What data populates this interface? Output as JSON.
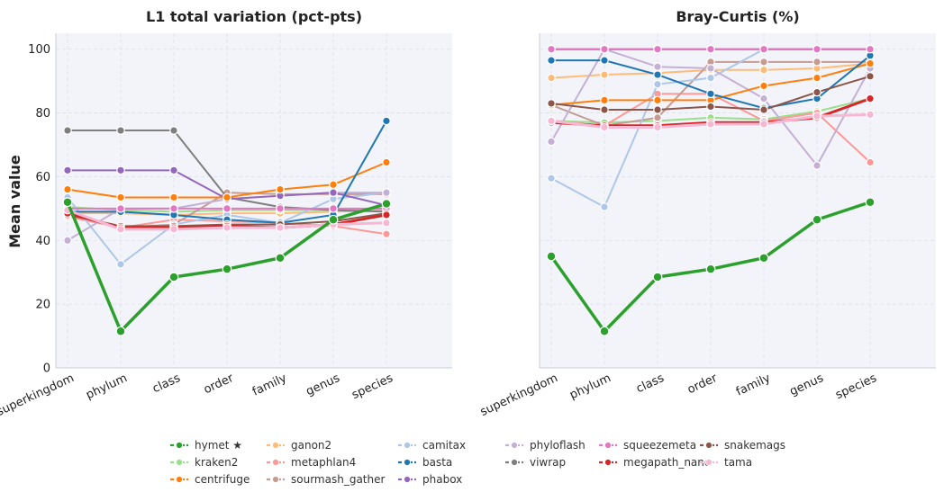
{
  "figure": {
    "ylabel": "Mean value"
  },
  "chart_data": [
    {
      "type": "line",
      "title": "L1 total variation (pct-pts)",
      "categories": [
        "superkingdom",
        "phylum",
        "class",
        "order",
        "family",
        "genus",
        "species"
      ],
      "ylim": [
        0,
        105
      ],
      "yticks": [
        0,
        20,
        40,
        60,
        80,
        100
      ],
      "grid": true,
      "series": [
        {
          "name": "ganon2",
          "values": [
            48.5,
            48.5,
            48.0,
            48.5,
            48.5,
            49.0,
            49.5
          ]
        },
        {
          "name": "kraken2",
          "values": [
            50.5,
            49.5,
            49.0,
            49.5,
            49.5,
            49.5,
            50.0
          ]
        },
        {
          "name": "metaphlan4",
          "values": [
            47.5,
            44.0,
            46.5,
            46.0,
            45.5,
            44.5,
            42.0
          ]
        },
        {
          "name": "sourmash_gather",
          "values": [
            49.0,
            44.0,
            45.0,
            55.0,
            54.5,
            54.5,
            54.5
          ]
        },
        {
          "name": "camitax",
          "values": [
            53.5,
            32.5,
            45.0,
            48.0,
            45.5,
            53.0,
            55.0
          ]
        },
        {
          "name": "phyloflash",
          "values": [
            40.0,
            50.0,
            50.0,
            53.0,
            54.0,
            55.0,
            55.0
          ]
        },
        {
          "name": "viwrap",
          "values": [
            74.5,
            74.5,
            74.5,
            53.5,
            50.5,
            49.5,
            49.0
          ]
        },
        {
          "name": "phabox",
          "values": [
            62.0,
            62.0,
            62.0,
            53.0,
            54.0,
            55.0,
            51.0
          ]
        },
        {
          "name": "centrifuge",
          "values": [
            56.0,
            53.5,
            53.5,
            53.5,
            56.0,
            57.5,
            64.5
          ]
        },
        {
          "name": "basta",
          "values": [
            49.0,
            49.0,
            48.0,
            46.5,
            45.5,
            48.0,
            77.5
          ]
        },
        {
          "name": "squeezemeta",
          "values": [
            50.0,
            50.0,
            50.0,
            50.0,
            50.0,
            50.0,
            50.0
          ]
        },
        {
          "name": "snakemags",
          "values": [
            48.0,
            44.5,
            44.5,
            45.0,
            45.0,
            46.0,
            48.5
          ]
        },
        {
          "name": "megapath_nano",
          "values": [
            48.5,
            44.0,
            44.0,
            44.5,
            44.0,
            45.0,
            48.0
          ]
        },
        {
          "name": "tama",
          "values": [
            49.5,
            43.5,
            43.5,
            44.0,
            44.0,
            45.0,
            45.5
          ]
        },
        {
          "name": "hymet ★",
          "values": [
            52.0,
            11.5,
            28.5,
            31.0,
            34.5,
            46.5,
            51.5
          ]
        }
      ]
    },
    {
      "type": "line",
      "title": "Bray-Curtis (%)",
      "categories": [
        "superkingdom",
        "phylum",
        "class",
        "order",
        "family",
        "genus",
        "species"
      ],
      "ylim": [
        0,
        105
      ],
      "yticks": [
        0,
        20,
        40,
        60,
        80,
        100
      ],
      "grid": true,
      "series": [
        {
          "name": "ganon2",
          "values": [
            91.0,
            92.0,
            92.5,
            93.5,
            93.5,
            94.0,
            95.5
          ]
        },
        {
          "name": "kraken2",
          "values": [
            77.5,
            77.0,
            77.5,
            78.5,
            78.0,
            80.5,
            84.5
          ]
        },
        {
          "name": "metaphlan4",
          "values": [
            77.5,
            76.0,
            86.0,
            86.0,
            77.5,
            80.0,
            64.5
          ]
        },
        {
          "name": "sourmash_gather",
          "values": [
            82.5,
            76.0,
            78.5,
            96.0,
            96.0,
            96.0,
            96.0
          ]
        },
        {
          "name": "camitax",
          "values": [
            59.5,
            50.5,
            89.0,
            91.0,
            100.0,
            100.0,
            100.0
          ]
        },
        {
          "name": "phyloflash",
          "values": [
            71.0,
            100.0,
            94.5,
            94.0,
            84.5,
            63.5,
            94.0
          ]
        },
        {
          "name": "viwrap",
          "values": [
            100.0,
            100.0,
            100.0,
            100.0,
            100.0,
            100.0,
            100.0
          ]
        },
        {
          "name": "phabox",
          "values": [
            100.0,
            100.0,
            100.0,
            100.0,
            100.0,
            100.0,
            100.0
          ]
        },
        {
          "name": "centrifuge",
          "values": [
            82.5,
            84.0,
            84.0,
            84.0,
            88.5,
            91.0,
            95.5
          ]
        },
        {
          "name": "basta",
          "values": [
            96.5,
            96.5,
            92.0,
            86.0,
            81.5,
            84.5,
            98.0
          ]
        },
        {
          "name": "squeezemeta",
          "values": [
            100.0,
            100.0,
            100.0,
            100.0,
            100.0,
            100.0,
            100.0
          ]
        },
        {
          "name": "snakemags",
          "values": [
            83.0,
            81.0,
            81.0,
            82.0,
            81.0,
            86.5,
            91.5
          ]
        },
        {
          "name": "megapath_nano",
          "values": [
            77.0,
            76.0,
            76.0,
            77.0,
            77.0,
            78.5,
            84.5
          ]
        },
        {
          "name": "tama",
          "values": [
            77.5,
            75.5,
            75.5,
            76.5,
            76.5,
            79.0,
            79.5
          ]
        },
        {
          "name": "hymet ★",
          "values": [
            35.0,
            11.5,
            28.5,
            31.0,
            34.5,
            46.5,
            52.0
          ]
        }
      ]
    }
  ],
  "styles": {
    "hymet ★": {
      "color": "#2ca02c",
      "width": 3.5
    },
    "kraken2": {
      "color": "#98df8a",
      "width": 2
    },
    "centrifuge": {
      "color": "#ff7f0e",
      "width": 2
    },
    "ganon2": {
      "color": "#ffbb78",
      "width": 2
    },
    "metaphlan4": {
      "color": "#ff9896",
      "width": 2
    },
    "sourmash_gather": {
      "color": "#c49c94",
      "width": 2
    },
    "camitax": {
      "color": "#aec7e8",
      "width": 2
    },
    "basta": {
      "color": "#1f77b4",
      "width": 2
    },
    "phabox": {
      "color": "#9467bd",
      "width": 2
    },
    "phyloflash": {
      "color": "#c5b0d5",
      "width": 2
    },
    "viwrap": {
      "color": "#7f7f7f",
      "width": 2
    },
    "squeezemeta": {
      "color": "#e377c2",
      "width": 2
    },
    "megapath_nano": {
      "color": "#d62728",
      "width": 3
    },
    "snakemags": {
      "color": "#8c564b",
      "width": 2
    },
    "tama": {
      "color": "#f7b6d2",
      "width": 3
    }
  },
  "legend": {
    "placement": "bottom-center",
    "columns": [
      [
        "hymet ★",
        "kraken2",
        "centrifuge"
      ],
      [
        "ganon2",
        "metaphlan4",
        "sourmash_gather"
      ],
      [
        "camitax",
        "basta",
        "phabox"
      ],
      [
        "phyloflash",
        "viwrap"
      ],
      [
        "squeezemeta",
        "megapath_nano"
      ],
      [
        "snakemags",
        "tama"
      ]
    ]
  }
}
